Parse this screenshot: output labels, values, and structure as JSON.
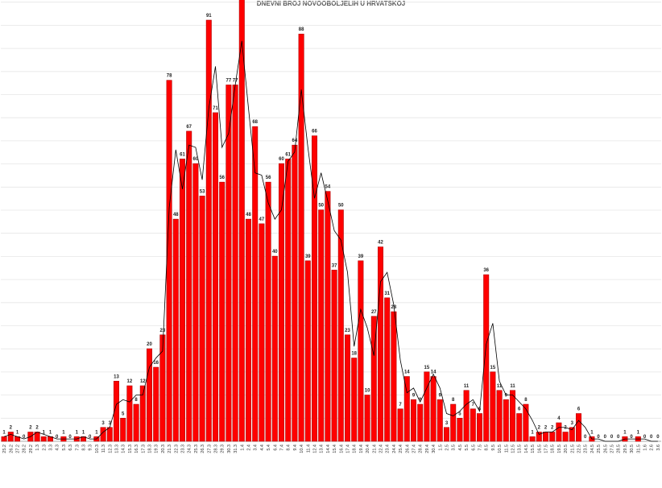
{
  "chart_data": {
    "type": "bar",
    "title": "DNEVNI BROJ NOVOOBOLJELIH U HRVATSKOJ",
    "xlabel": "",
    "ylabel": "",
    "ylim": [
      0,
      95
    ],
    "grid": true,
    "legend": "none",
    "bar_color": "#ff0000",
    "bar_edge_color": "#b00000",
    "line_color": "#000000",
    "categories": [
      "25.2",
      "26.2",
      "27.2",
      "28.2",
      "29.2",
      "1.3",
      "2.3",
      "3.3",
      "4.3",
      "5.3",
      "6.3",
      "7.3",
      "8.3",
      "9.3",
      "10.3",
      "11.3",
      "12.3",
      "13.3",
      "14.3",
      "15.3",
      "16.3",
      "17.3",
      "18.3",
      "19.3",
      "20.3",
      "21.3",
      "22.3",
      "23.3",
      "24.3",
      "25.3",
      "26.3",
      "27.3",
      "28.3",
      "29.3",
      "30.3",
      "31.3",
      "1.4",
      "2.4",
      "3.4",
      "4.4",
      "5.4",
      "6.4",
      "7.4",
      "8.4",
      "9.4",
      "10.4",
      "11.4",
      "12.4",
      "13.4",
      "14.4",
      "15.4",
      "16.4",
      "17.4",
      "18.4",
      "19.4",
      "20.4",
      "21.4",
      "22.4",
      "23.4",
      "24.4",
      "25.4",
      "26.4",
      "27.4",
      "28.4",
      "29.4",
      "30.4",
      "1.5",
      "2.5",
      "3.5",
      "4.5",
      "5.5",
      "6.5",
      "7.5",
      "8.5",
      "9.5",
      "10.5",
      "11.5",
      "12.5",
      "13.5",
      "14.5",
      "15.5",
      "16.5",
      "17.5",
      "18.5",
      "19.5",
      "20.5",
      "21.5",
      "22.5",
      "23.5",
      "24.5",
      "25.5",
      "26.5",
      "27.5",
      "28.5",
      "29.5",
      "30.5",
      "31.5",
      "1.6",
      "2.6",
      "3.6"
    ],
    "values": [
      1,
      2,
      1,
      0,
      2,
      2,
      1,
      1,
      0,
      1,
      0,
      1,
      1,
      0,
      1,
      3,
      3,
      13,
      5,
      12,
      8,
      12,
      20,
      16,
      23,
      78,
      48,
      61,
      67,
      60,
      53,
      91,
      71,
      56,
      77,
      77,
      96,
      48,
      68,
      47,
      56,
      40,
      60,
      61,
      64,
      88,
      39,
      66,
      50,
      54,
      37,
      50,
      23,
      18,
      39,
      10,
      27,
      42,
      31,
      28,
      7,
      14,
      9,
      8,
      15,
      14,
      9,
      3,
      8,
      5,
      11,
      7,
      6,
      36,
      15,
      11,
      9,
      11,
      6,
      8,
      1,
      2,
      2,
      2,
      4,
      2,
      3,
      6,
      0,
      1,
      0,
      0,
      0,
      0,
      1,
      0,
      1,
      0,
      0,
      0
    ],
    "series": [
      {
        "name": "",
        "type": "bar",
        "values": [
          1,
          2,
          1,
          0,
          2,
          2,
          1,
          1,
          0,
          1,
          0,
          1,
          1,
          0,
          1,
          3,
          3,
          13,
          5,
          12,
          8,
          12,
          20,
          16,
          23,
          78,
          48,
          61,
          67,
          60,
          53,
          91,
          71,
          56,
          77,
          77,
          96,
          48,
          68,
          47,
          56,
          40,
          60,
          61,
          64,
          88,
          39,
          66,
          50,
          54,
          37,
          50,
          23,
          18,
          39,
          10,
          27,
          42,
          31,
          28,
          7,
          14,
          9,
          8,
          15,
          14,
          9,
          3,
          8,
          5,
          11,
          7,
          6,
          36,
          15,
          11,
          9,
          11,
          6,
          8,
          1,
          2,
          2,
          2,
          4,
          2,
          3,
          6,
          0,
          1,
          0,
          0,
          0,
          0,
          1,
          0,
          1,
          0,
          0,
          0
        ]
      },
      {
        "name": "",
        "type": "line",
        "values": [
          1,
          1.5,
          1,
          0.5,
          1,
          2,
          1.5,
          1,
          0.5,
          0.5,
          0.5,
          0.5,
          1,
          0.5,
          0.5,
          2,
          3,
          8,
          9,
          8.5,
          10,
          10,
          16,
          18,
          19.5,
          50.5,
          63,
          54.5,
          64,
          63.5,
          56.5,
          72,
          81,
          63.5,
          66.5,
          77,
          86.5,
          72,
          58,
          57.5,
          51.5,
          48,
          50,
          60.5,
          62.5,
          76,
          63.5,
          52.5,
          58,
          52,
          45.5,
          43.5,
          36.5,
          20.5,
          28.5,
          24.5,
          18.5,
          34.5,
          36.5,
          29.5,
          17.5,
          10.5,
          11.5,
          8.5,
          11.5,
          14.5,
          11.5,
          6,
          5.5,
          6.5,
          8,
          9,
          6.5,
          21,
          25.5,
          13,
          10,
          10,
          8.5,
          7,
          4.5,
          1.5,
          2,
          2,
          3,
          3,
          2.5,
          4.5,
          3,
          0.5,
          0.5,
          0,
          0,
          0,
          0.5,
          0.5,
          0.5,
          0.5,
          0,
          0
        ]
      }
    ]
  }
}
